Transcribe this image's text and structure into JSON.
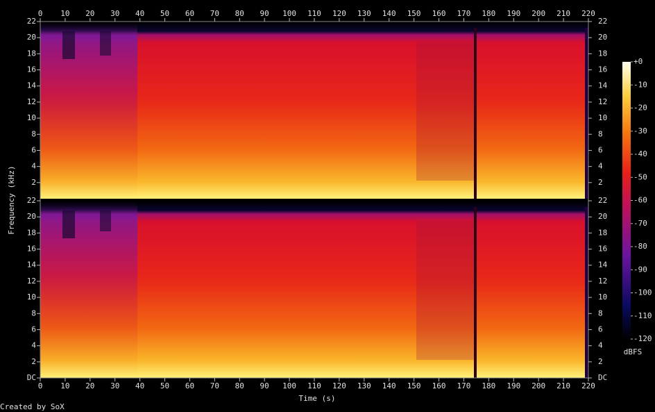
{
  "chart_data": {
    "type": "spectrogram",
    "x_label": "Time (s)",
    "y_label": "Frequency (kHz)",
    "xlim": [
      0,
      220
    ],
    "xticks": [
      0,
      10,
      20,
      30,
      40,
      50,
      60,
      70,
      80,
      90,
      100,
      110,
      120,
      130,
      140,
      150,
      160,
      170,
      180,
      190,
      200,
      210,
      220
    ],
    "channels": [
      {
        "ylim": [
          0,
          22
        ],
        "yticks": [
          2,
          4,
          6,
          8,
          10,
          12,
          14,
          16,
          18,
          20,
          22
        ]
      },
      {
        "ylim": [
          0,
          22
        ],
        "yticks": [
          {
            "value": 0,
            "label": "DC"
          },
          2,
          4,
          6,
          8,
          10,
          12,
          14,
          16,
          18,
          20,
          22
        ]
      }
    ],
    "colorbar": {
      "label": "dBFS",
      "lim": [
        -120,
        0
      ],
      "ticks": [
        {
          "value": 0,
          "label": "+0"
        },
        -10,
        -20,
        -30,
        -40,
        -50,
        -60,
        -70,
        -80,
        -90,
        -100,
        -110,
        -120
      ]
    }
  },
  "footer": "Created by SoX"
}
